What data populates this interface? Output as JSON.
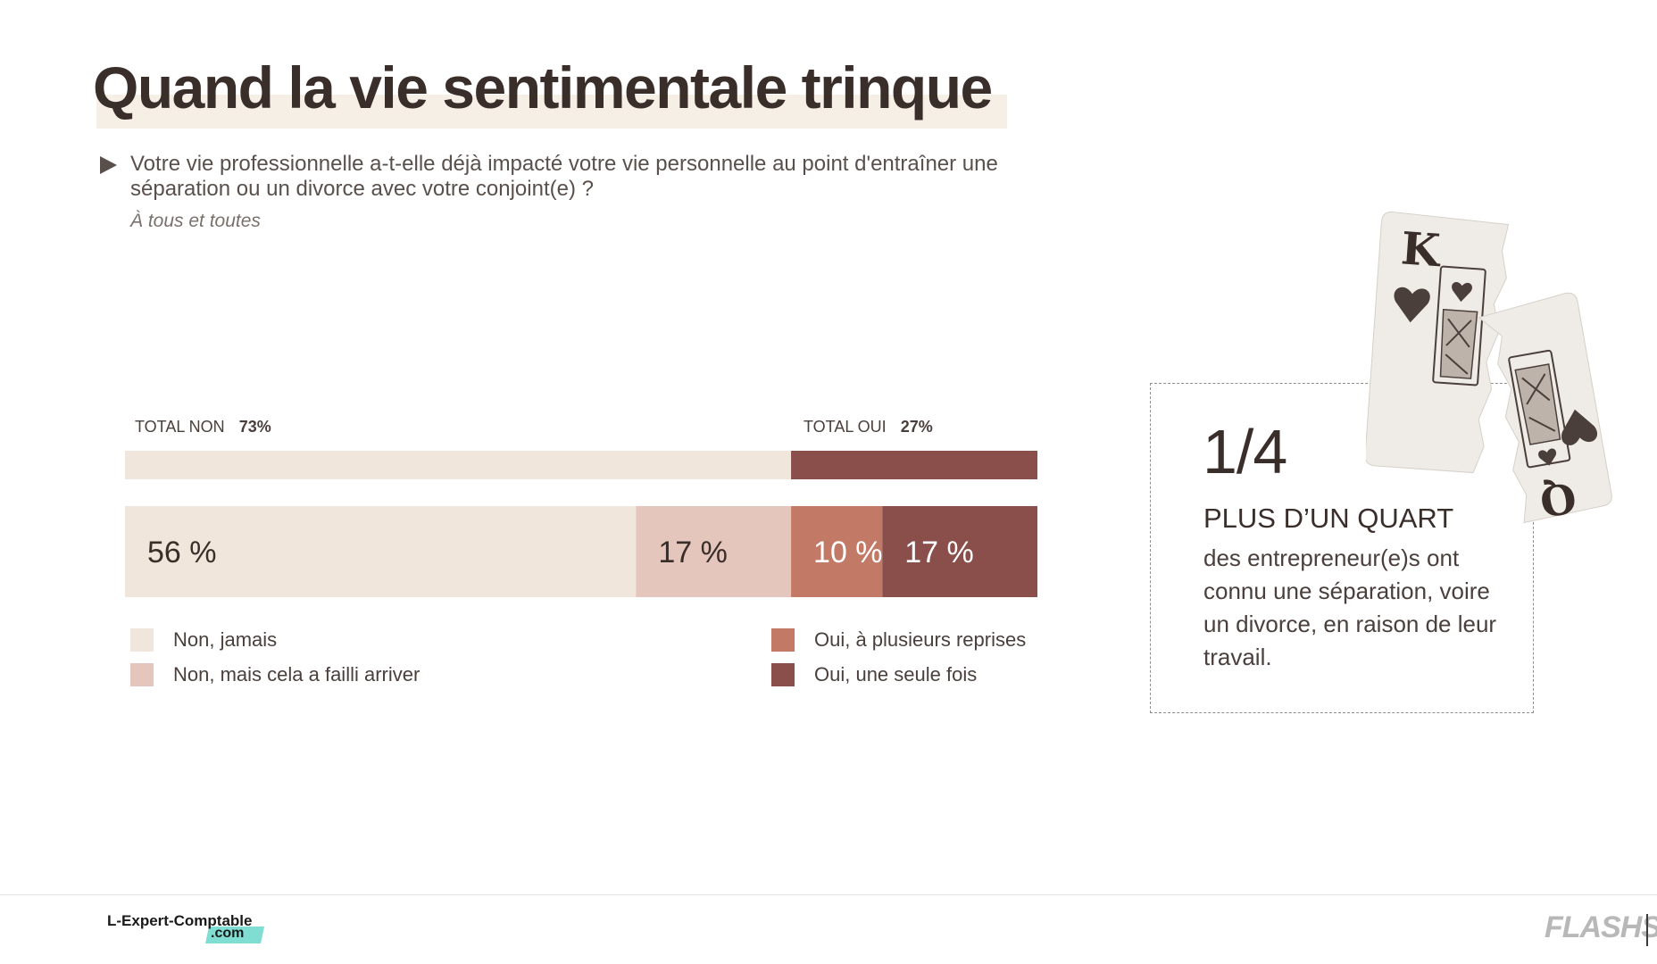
{
  "header": {
    "title": "Quand la vie sentimentale trinque",
    "question": "Votre vie professionnelle a-t-elle déjà impacté votre vie personnelle au point d'entraîner une séparation ou un divorce avec votre conjoint(e) ?",
    "base": "À tous et toutes"
  },
  "totals": {
    "non_label": "TOTAL NON",
    "non_value": "73%",
    "oui_label": "TOTAL OUI",
    "oui_value": "27%"
  },
  "chart_data": {
    "type": "bar",
    "orientation": "horizontal-stacked",
    "xlim": [
      0,
      100
    ],
    "totals_bar": [
      {
        "name": "TOTAL NON",
        "value": 73,
        "color": "#f1e6db"
      },
      {
        "name": "TOTAL OUI",
        "value": 27,
        "color": "#8a4e4b"
      }
    ],
    "series": [
      {
        "name": "Non, jamais",
        "value": 56,
        "label": "56 %",
        "color": "#f1e6db",
        "text_color": "#3a2e2a"
      },
      {
        "name": "Non, mais cela a failli arriver",
        "value": 17,
        "label": "17 %",
        "color": "#e4c6bc",
        "text_color": "#3a2e2a"
      },
      {
        "name": "Oui, à plusieurs reprises",
        "value": 10,
        "label": "10 %",
        "color": "#c27a66",
        "text_color": "#ffffff"
      },
      {
        "name": "Oui, une seule fois",
        "value": 17,
        "label": "17 %",
        "color": "#8a4e4b",
        "text_color": "#ffffff"
      }
    ],
    "legend": "bottom"
  },
  "callout": {
    "fraction": "1/4",
    "heading": "PLUS D’UN QUART",
    "body": "des entrepreneur(e)s ont connu une séparation, voire un divorce, en raison de leur travail."
  },
  "footer": {
    "logo": "L-Expert-Comptable",
    "logo_suffix": ".com",
    "brand": "FLASHS"
  }
}
